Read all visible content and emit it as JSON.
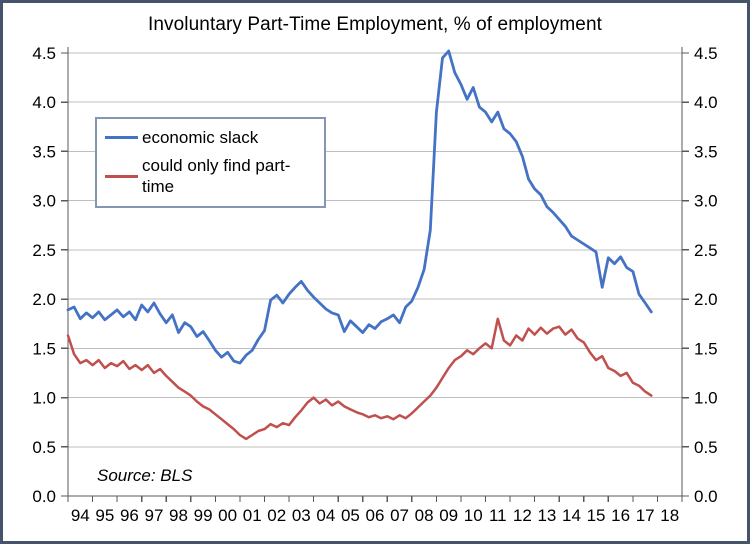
{
  "window": {
    "border_color": "#44546A",
    "background_color": "#FFFFFF"
  },
  "chart_data": {
    "type": "line",
    "title": "Involuntary Part-Time Employment, % of employment",
    "source_note": "Source: BLS",
    "grid": "horizontal",
    "grid_color": "#BFBFBF",
    "axis_color": "#595959",
    "legend_position": "upper-left-inside",
    "legend_border_color": "#8496B0",
    "x_range": [
      1994,
      2019
    ],
    "y_range": [
      0,
      4.5
    ],
    "y_tick_step": 0.5,
    "y_tick_labels": [
      "0.0",
      "0.5",
      "1.0",
      "1.5",
      "2.0",
      "2.5",
      "3.0",
      "3.5",
      "4.0",
      "4.5"
    ],
    "y_axis_sides": [
      "left",
      "right"
    ],
    "x_tick_labels": [
      "94",
      "95",
      "96",
      "97",
      "98",
      "99",
      "00",
      "01",
      "02",
      "03",
      "04",
      "05",
      "06",
      "07",
      "08",
      "09",
      "10",
      "11",
      "12",
      "13",
      "14",
      "15",
      "16",
      "17",
      "18"
    ],
    "series": [
      {
        "name": "economic slack",
        "color": "#4472C4",
        "x_start": 1994.0,
        "x_step": 0.25,
        "values": [
          1.89,
          1.92,
          1.8,
          1.86,
          1.81,
          1.87,
          1.79,
          1.84,
          1.89,
          1.82,
          1.87,
          1.79,
          1.94,
          1.87,
          1.96,
          1.85,
          1.76,
          1.84,
          1.66,
          1.76,
          1.72,
          1.62,
          1.67,
          1.58,
          1.48,
          1.41,
          1.46,
          1.37,
          1.35,
          1.43,
          1.48,
          1.59,
          1.68,
          1.99,
          2.04,
          1.96,
          2.05,
          2.12,
          2.18,
          2.09,
          2.02,
          1.96,
          1.9,
          1.86,
          1.84,
          1.67,
          1.78,
          1.72,
          1.66,
          1.74,
          1.7,
          1.77,
          1.8,
          1.84,
          1.76,
          1.92,
          1.98,
          2.12,
          2.3,
          2.7,
          3.9,
          4.45,
          4.52,
          4.3,
          4.18,
          4.03,
          4.15,
          3.95,
          3.9,
          3.8,
          3.9,
          3.73,
          3.68,
          3.6,
          3.45,
          3.22,
          3.12,
          3.06,
          2.94,
          2.88,
          2.81,
          2.74,
          2.64,
          2.6,
          2.56,
          2.52,
          2.48,
          2.12,
          2.42,
          2.36,
          2.43,
          2.32,
          2.28,
          2.05,
          1.96,
          1.87
        ]
      },
      {
        "name": "could only find part-time",
        "color": "#C0504D",
        "x_start": 1994.0,
        "x_step": 0.25,
        "values": [
          1.63,
          1.44,
          1.35,
          1.38,
          1.33,
          1.38,
          1.3,
          1.35,
          1.32,
          1.37,
          1.29,
          1.33,
          1.28,
          1.33,
          1.25,
          1.29,
          1.22,
          1.16,
          1.1,
          1.06,
          1.02,
          0.96,
          0.91,
          0.88,
          0.83,
          0.78,
          0.73,
          0.68,
          0.62,
          0.58,
          0.62,
          0.66,
          0.68,
          0.73,
          0.7,
          0.74,
          0.72,
          0.8,
          0.87,
          0.95,
          1.0,
          0.94,
          0.98,
          0.92,
          0.96,
          0.91,
          0.88,
          0.85,
          0.83,
          0.8,
          0.82,
          0.79,
          0.81,
          0.78,
          0.82,
          0.79,
          0.84,
          0.9,
          0.96,
          1.02,
          1.1,
          1.2,
          1.3,
          1.38,
          1.42,
          1.48,
          1.44,
          1.5,
          1.55,
          1.5,
          1.8,
          1.58,
          1.53,
          1.63,
          1.58,
          1.7,
          1.64,
          1.71,
          1.65,
          1.7,
          1.72,
          1.64,
          1.69,
          1.6,
          1.56,
          1.46,
          1.38,
          1.42,
          1.3,
          1.27,
          1.22,
          1.25,
          1.15,
          1.12,
          1.06,
          1.02
        ]
      }
    ]
  }
}
